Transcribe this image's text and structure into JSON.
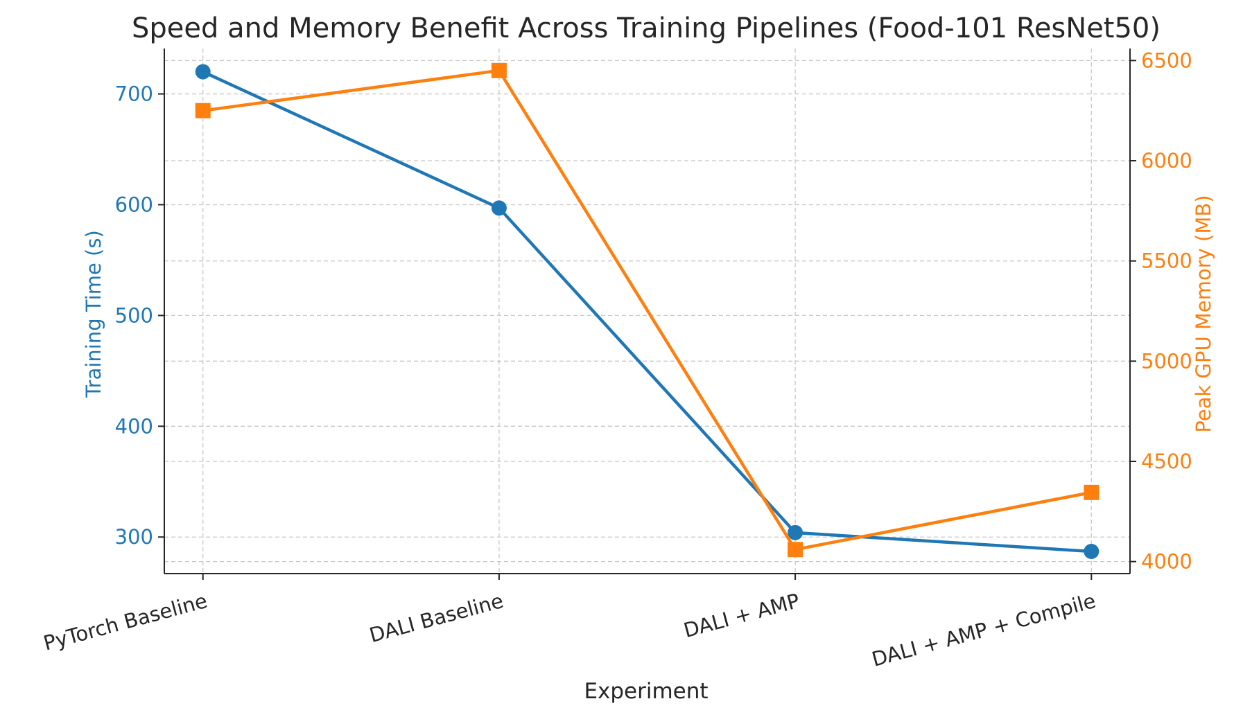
{
  "chart_data": {
    "type": "line",
    "title": "Speed and Memory Benefit Across Training Pipelines (Food-101 ResNet50)",
    "xlabel": "Experiment",
    "categories": [
      "PyTorch Baseline",
      "DALI Baseline",
      "DALI + AMP",
      "DALI + AMP + Compile"
    ],
    "y_left": {
      "label": "Training Time (s)",
      "color": "#1f77b4",
      "lim": [
        267,
        741
      ],
      "ticks": [
        300,
        400,
        500,
        600,
        700
      ]
    },
    "y_right": {
      "label": "Peak GPU Memory (MB)",
      "color": "#ff7f0e",
      "lim": [
        3940,
        6560
      ],
      "ticks": [
        4000,
        4500,
        5000,
        5500,
        6000,
        6500
      ]
    },
    "series": [
      {
        "axis": "left",
        "marker": "circle",
        "color": "#1f77b4",
        "values": [
          720,
          597,
          304,
          287
        ]
      },
      {
        "axis": "right",
        "marker": "square",
        "color": "#ff7f0e",
        "values": [
          6250,
          6450,
          4060,
          4345
        ]
      }
    ],
    "grid": true
  }
}
